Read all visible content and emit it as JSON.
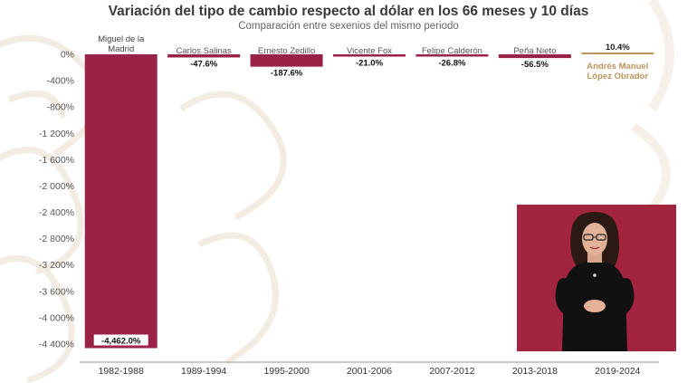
{
  "chart_data": {
    "type": "bar",
    "title": "Variación del tipo de cambio respecto al dólar en los 66 meses y 10 días",
    "subtitle": "Comparación entre sexenios del mismo periodo",
    "categories": [
      "1982-1988",
      "1989-1994",
      "1995-2000",
      "2001-2006",
      "2007-2012",
      "2013-2018",
      "2019-2024"
    ],
    "president_labels": [
      "Miguel de la Madrid",
      "Carlos Salinas",
      "Ernesto Zedillo",
      "Vicente Fox",
      "Felipe Calderón",
      "Peña Nieto",
      "Andrés Manuel López Obrador"
    ],
    "values": [
      -4462.0,
      -47.6,
      -187.6,
      -21.0,
      -26.8,
      -56.5,
      10.4
    ],
    "data_labels": [
      "-4,462.0%",
      "-47.6%",
      "-187.6%",
      "-21.0%",
      "-26.8%",
      "-56.5%",
      "10.4%"
    ],
    "yticks": [
      0,
      -400,
      -800,
      -1200,
      -1600,
      -2000,
      -2400,
      -2800,
      -3200,
      -3600,
      -4000,
      -4400
    ],
    "ytick_labels": [
      "0%",
      "-400%",
      "-800%",
      "-1 200%",
      "-1 600%",
      "-2 000%",
      "-2 400%",
      "-2 800%",
      "-3 200%",
      "-3 600%",
      "-4 000%",
      "-4 400%"
    ],
    "ylim": [
      -4500,
      0
    ],
    "grid": false,
    "legend": "none",
    "colors": {
      "bar": "#9b2247",
      "highlight": "#bc955c",
      "text": "#3a3a3a",
      "axis": "#555555"
    }
  },
  "interpreter": {
    "description": "sign-language-interpreter-video",
    "background": "#a3243f"
  }
}
